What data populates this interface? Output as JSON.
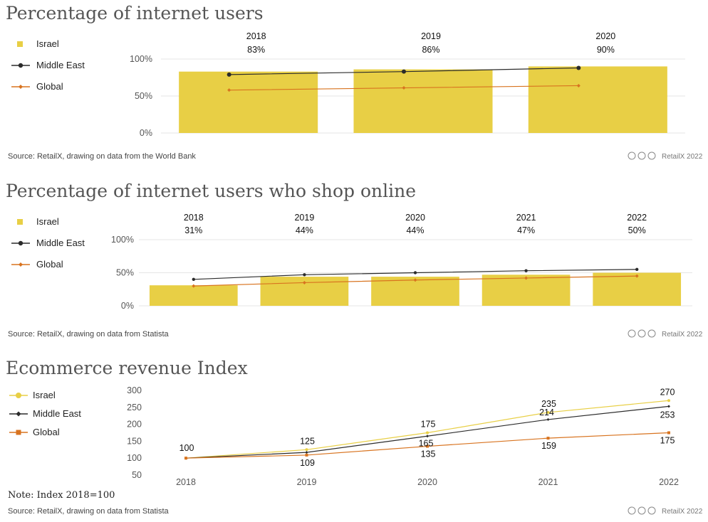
{
  "colors": {
    "israel": "#e8cf45",
    "israel_line": "#e8cf45",
    "middle_east": "#2b2b2b",
    "global": "#d8731f"
  },
  "chart_data": [
    {
      "type": "bar",
      "title": "Percentage of internet users",
      "categories": [
        "2018",
        "2019",
        "2020"
      ],
      "bar_labels": [
        "83%",
        "86%",
        "90%"
      ],
      "yticks": [
        "0%",
        "50%",
        "100%"
      ],
      "ylim": [
        0,
        100
      ],
      "legend": [
        "Israel",
        "Middle East",
        "Global"
      ],
      "series": [
        {
          "name": "Israel",
          "kind": "bar",
          "values": [
            83,
            86,
            90
          ]
        },
        {
          "name": "Middle East",
          "kind": "line",
          "values": [
            79,
            83,
            88
          ]
        },
        {
          "name": "Global",
          "kind": "line",
          "values": [
            58,
            61,
            64
          ]
        }
      ],
      "source": "Source: RetailX, drawing on data from the World Bank",
      "credit": "RetailX 2022"
    },
    {
      "type": "bar",
      "title": "Percentage of internet users who shop online",
      "categories": [
        "2018",
        "2019",
        "2020",
        "2021",
        "2022"
      ],
      "bar_labels": [
        "31%",
        "44%",
        "44%",
        "47%",
        "50%"
      ],
      "yticks": [
        "0%",
        "50%",
        "100%"
      ],
      "ylim": [
        0,
        100
      ],
      "legend": [
        "Israel",
        "Middle East",
        "Global"
      ],
      "series": [
        {
          "name": "Israel",
          "kind": "bar",
          "values": [
            31,
            44,
            44,
            47,
            50
          ]
        },
        {
          "name": "Middle East",
          "kind": "line",
          "values": [
            40,
            47,
            50,
            53,
            55
          ]
        },
        {
          "name": "Global",
          "kind": "line",
          "values": [
            30,
            35,
            39,
            42,
            45
          ]
        }
      ],
      "source": "Source: RetailX, drawing on data from Statista",
      "credit": "RetailX 2022"
    },
    {
      "type": "line",
      "title": "Ecommerce revenue Index",
      "categories": [
        "2018",
        "2019",
        "2020",
        "2021",
        "2022"
      ],
      "yticks": [
        "50",
        "100",
        "150",
        "200",
        "250",
        "300"
      ],
      "ylim": [
        50,
        300
      ],
      "legend": [
        "Israel",
        "Middle East",
        "Global"
      ],
      "series": [
        {
          "name": "Israel",
          "values": [
            100,
            125,
            175,
            235,
            270
          ],
          "labels": [
            "100",
            "125",
            "175",
            "235",
            "270"
          ]
        },
        {
          "name": "Middle East",
          "values": [
            100,
            117,
            165,
            214,
            253
          ],
          "labels": [
            "",
            "",
            "165",
            "214",
            "253"
          ]
        },
        {
          "name": "Global",
          "values": [
            100,
            109,
            135,
            159,
            175
          ],
          "labels": [
            "",
            "109",
            "135",
            "159",
            "175"
          ]
        }
      ],
      "note": "Note: Index 2018=100",
      "source": "Source: RetailX, drawing on data from Statista",
      "credit": "RetailX 2022"
    }
  ]
}
